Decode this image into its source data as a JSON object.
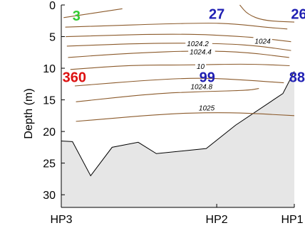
{
  "chart_data": {
    "type": "contour",
    "ylabel": "Depth (m)",
    "x_tick_labels": [
      "HP3",
      "HP2",
      "HP1"
    ],
    "y_ticks": [
      0,
      5,
      10,
      15,
      20,
      25,
      30
    ],
    "ylim": [
      0,
      32
    ],
    "y_inverted": true,
    "x_range": [
      0,
      1
    ],
    "station_x": [
      0,
      0.667,
      1.0
    ],
    "bottom_profile": [
      {
        "x": 0.0,
        "depth": 21.5
      },
      {
        "x": 0.048,
        "depth": 21.6
      },
      {
        "x": 0.126,
        "depth": 27.0
      },
      {
        "x": 0.218,
        "depth": 22.5
      },
      {
        "x": 0.33,
        "depth": 21.7
      },
      {
        "x": 0.408,
        "depth": 23.5
      },
      {
        "x": 0.622,
        "depth": 22.7
      },
      {
        "x": 0.748,
        "depth": 19.0
      },
      {
        "x": 0.951,
        "depth": 14.0
      },
      {
        "x": 1.0,
        "depth": 10.5
      }
    ],
    "contours": [
      {
        "label": "",
        "points": [
          [
            0.01,
            2.0
          ],
          [
            0.262,
            0.6
          ]
        ]
      },
      {
        "label": "",
        "points": [
          [
            0.017,
            3.5
          ],
          [
            0.6,
            2.8
          ],
          [
            0.75,
            3.0
          ],
          [
            0.87,
            3.5
          ],
          [
            0.97,
            3.8
          ]
        ]
      },
      {
        "label": "",
        "points": [
          [
            0.019,
            5.0
          ],
          [
            0.5,
            4.5
          ],
          [
            0.8,
            5.0
          ],
          [
            0.986,
            5.8
          ]
        ]
      },
      {
        "label": "1024",
        "label_x": 0.83,
        "label_depth": 6.1,
        "points": [
          [
            0.024,
            6.5
          ],
          [
            0.4,
            6.0
          ],
          [
            0.7,
            6.1
          ],
          [
            0.85,
            6.5
          ],
          [
            0.986,
            7.2
          ]
        ]
      },
      {
        "label": "1024.2",
        "label_x": 0.539,
        "label_depth": 6.5,
        "points": [
          [
            0.029,
            8.3
          ],
          [
            0.3,
            7.6
          ],
          [
            0.6,
            7.2
          ],
          [
            0.8,
            7.5
          ],
          [
            0.978,
            8.3
          ]
        ]
      },
      {
        "label": "1024.4",
        "label_x": 0.551,
        "label_depth": 7.8,
        "points": [
          [
            0.039,
            10.2
          ],
          [
            0.3,
            9.5
          ],
          [
            0.55,
            9.5
          ],
          [
            0.8,
            9.3
          ],
          [
            0.98,
            9.6
          ]
        ]
      },
      {
        "label": "10",
        "label_x": 0.581,
        "label_depth": 10.1,
        "points": [
          [
            0.058,
            12.8
          ],
          [
            0.4,
            11.8
          ],
          [
            0.61,
            11.5
          ],
          [
            0.8,
            11.9
          ],
          [
            0.955,
            12.3
          ]
        ]
      },
      {
        "label": "1024.8",
        "label_x": 0.555,
        "label_depth": 13.3,
        "points": [
          [
            0.063,
            15.3
          ],
          [
            0.4,
            14.0
          ],
          [
            0.6,
            13.7
          ],
          [
            0.8,
            13.5
          ],
          [
            0.848,
            13.2
          ]
        ]
      },
      {
        "label": "1025",
        "label_x": 0.59,
        "label_depth": 16.7,
        "points": [
          [
            0.063,
            18.4
          ],
          [
            0.45,
            17.2
          ],
          [
            0.65,
            17.0
          ],
          [
            0.8,
            17.1
          ],
          [
            1.0,
            17.5
          ]
        ]
      },
      {
        "label": "",
        "points": [
          [
            0.766,
            0.0
          ],
          [
            0.8,
            1.5
          ],
          [
            0.87,
            2.5
          ],
          [
            1.0,
            2.7
          ]
        ]
      }
    ],
    "station_labels": [
      {
        "text": "3",
        "x": 0.048,
        "depth": 0.7,
        "color": "#33cc33"
      },
      {
        "text": "27",
        "x": 0.633,
        "depth": 0.4,
        "color": "#1f1fb3"
      },
      {
        "text": "26",
        "x": 0.986,
        "depth": 0.4,
        "color": "#1f1fb3"
      },
      {
        "text": "360",
        "x": 0.005,
        "depth": 10.4,
        "color": "#dd1111"
      },
      {
        "text": "99",
        "x": 0.592,
        "depth": 10.4,
        "color": "#1f1fb3"
      },
      {
        "text": "88",
        "x": 0.978,
        "depth": 10.4,
        "color": "#1f1fb3"
      }
    ],
    "colors": {
      "contour": "#8b5a2b",
      "seabed_fill": "#e6e6e6",
      "seabed_line": "#000000"
    }
  }
}
